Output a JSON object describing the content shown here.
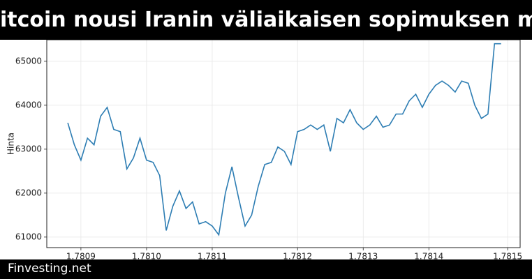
{
  "header": {
    "title": "itcoin nousi Iranin väliaikaisen sopimuksen myöt"
  },
  "footer": {
    "brand": "Finvesting.net"
  },
  "chart_data": {
    "type": "line",
    "ylabel": "Hinta",
    "color": "#2d7db3",
    "grid": true,
    "xlim": [
      1.780848,
      1.781569
    ],
    "ylim": [
      60760,
      65490
    ],
    "xticks": [
      {
        "value": 1.7809,
        "label": "1.7809"
      },
      {
        "value": 1.781,
        "label": "1.7810"
      },
      {
        "value": 1.7811,
        "label": "1.7811"
      },
      {
        "value": 1.78123,
        "label": "1.7812"
      },
      {
        "value": 1.78133,
        "label": "1.7813"
      },
      {
        "value": 1.78143,
        "label": "1.7814"
      },
      {
        "value": 1.78155,
        "label": "1.7815"
      }
    ],
    "yticks": [
      61000,
      62000,
      63000,
      64000,
      65000
    ],
    "x": [
      1.78088,
      1.78089,
      1.7809,
      1.78091,
      1.78092,
      1.78093,
      1.78094,
      1.78095,
      1.78096,
      1.78097,
      1.78098,
      1.78099,
      1.781,
      1.78101,
      1.78102,
      1.78103,
      1.78104,
      1.78105,
      1.78106,
      1.78107,
      1.78108,
      1.78109,
      1.7811,
      1.78111,
      1.78112,
      1.78113,
      1.78114,
      1.78115,
      1.78116,
      1.78117,
      1.78118,
      1.78119,
      1.7812,
      1.78121,
      1.78122,
      1.78123,
      1.78124,
      1.78125,
      1.78126,
      1.78127,
      1.78128,
      1.78129,
      1.7813,
      1.78131,
      1.78132,
      1.78133,
      1.78134,
      1.78135,
      1.78136,
      1.78137,
      1.78138,
      1.78139,
      1.7814,
      1.78141,
      1.78142,
      1.78143,
      1.78144,
      1.78145,
      1.78146,
      1.78147,
      1.78148,
      1.78149,
      1.7815,
      1.78151,
      1.78152,
      1.78153,
      1.78154
    ],
    "values": [
      63600,
      63100,
      62750,
      63250,
      63100,
      63750,
      63950,
      63450,
      63400,
      62550,
      62800,
      63250,
      62750,
      62700,
      62400,
      61150,
      61700,
      62050,
      61650,
      61800,
      61300,
      61350,
      61250,
      61050,
      62000,
      62600,
      61900,
      61250,
      61500,
      62150,
      62650,
      62700,
      63050,
      62950,
      62650,
      63400,
      63450,
      63550,
      63450,
      63550,
      62950,
      63700,
      63600,
      63900,
      63600,
      63450,
      63550,
      63750,
      63500,
      63550,
      63800,
      63800,
      64100,
      64250,
      63950,
      64250,
      64450,
      64550,
      64450,
      64300,
      64550,
      64500,
      64000,
      63700,
      63800,
      65400,
      65400
    ]
  }
}
